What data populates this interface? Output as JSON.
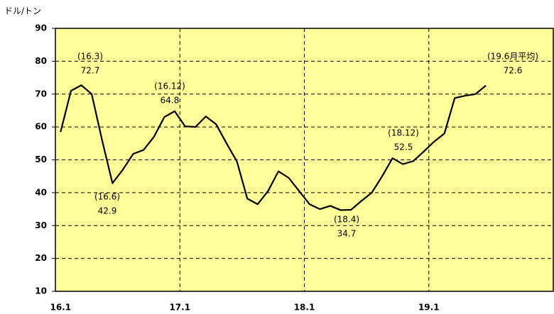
{
  "chart_data": {
    "type": "line",
    "y_unit_label": "ドル/トン",
    "categories": [
      "16.1",
      null,
      null,
      null,
      null,
      null,
      null,
      null,
      null,
      null,
      null,
      null,
      "17.1",
      null,
      null,
      null,
      null,
      null,
      null,
      null,
      null,
      null,
      null,
      null,
      "18.1",
      null,
      null,
      null,
      null,
      null,
      null,
      null,
      null,
      null,
      null,
      null,
      "19.1",
      null,
      null,
      null,
      null,
      null,
      null,
      null,
      null,
      null,
      null,
      null
    ],
    "series": [
      {
        "color": "#000000",
        "values": [
          58.5,
          71,
          72.7,
          70,
          56,
          42.9,
          47,
          51.8,
          53,
          57,
          63,
          64.8,
          60.2,
          60,
          63.2,
          60.8,
          55,
          49.5,
          38.2,
          36.5,
          40.5,
          46.5,
          44.5,
          40.5,
          36.5,
          35,
          36,
          34.7,
          34.8,
          37.5,
          40,
          45,
          50.5,
          48.7,
          49.6,
          52.5,
          55.5,
          58,
          68.8,
          69.5,
          70,
          72.6,
          null,
          null,
          null,
          null,
          null,
          null
        ]
      }
    ],
    "ylim": [
      10,
      90
    ],
    "yticks": [
      10,
      20,
      30,
      40,
      50,
      60,
      70,
      80,
      90
    ],
    "grid": true,
    "background": "#ffff99",
    "annotations": [
      {
        "period": "(16.3)",
        "value": 72.7,
        "index": 2
      },
      {
        "period": "(16.6)",
        "value": 42.9,
        "index": 5
      },
      {
        "period": "(16.12)",
        "value": 64.8,
        "index": 11
      },
      {
        "period": "(18.4)",
        "value": 34.7,
        "index": 27
      },
      {
        "period": "(18.12)",
        "value": 52.5,
        "index": 35
      },
      {
        "period": "(19.6月平均)",
        "value": 72.6,
        "index": 41
      }
    ]
  }
}
